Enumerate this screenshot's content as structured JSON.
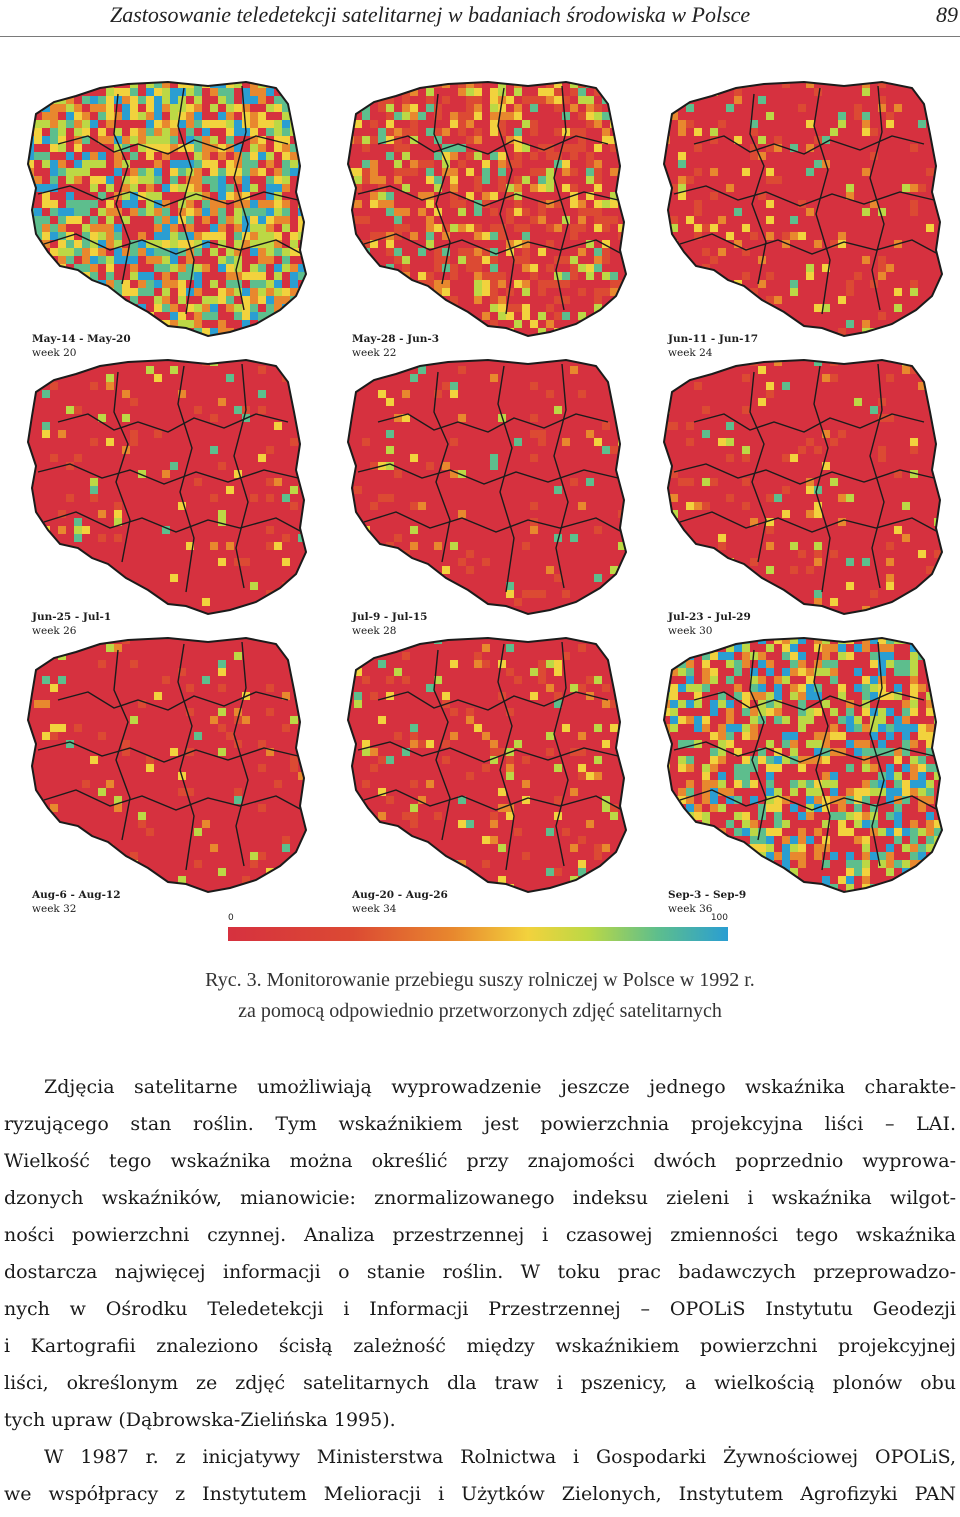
{
  "running_head": {
    "title": "Zastosowanie teledetekcji satelitarnej w badaniach środowiska w Polsce",
    "page_number": "89"
  },
  "maps": [
    {
      "dates": "May-14 - May-20",
      "week": "week 20",
      "wetness": 0.72
    },
    {
      "dates": "May-28 - Jun-3",
      "week": "week 22",
      "wetness": 0.5
    },
    {
      "dates": "Jun-11 - Jun-17",
      "week": "week 24",
      "wetness": 0.18
    },
    {
      "dates": "Jun-25 - Jul-1",
      "week": "week 26",
      "wetness": 0.1
    },
    {
      "dates": "Jul-9 - Jul-15",
      "week": "week 28",
      "wetness": 0.09
    },
    {
      "dates": "Jul-23 - Jul-29",
      "week": "week 30",
      "wetness": 0.12
    },
    {
      "dates": "Aug-6 - Aug-12",
      "week": "week 32",
      "wetness": 0.11
    },
    {
      "dates": "Aug-20 - Aug-26",
      "week": "week 34",
      "wetness": 0.16
    },
    {
      "dates": "Sep-3 - Sep-9",
      "week": "week 36",
      "wetness": 0.58
    }
  ],
  "colors": {
    "scale": [
      "#d6313f",
      "#dc4a33",
      "#e8882e",
      "#f2d23d",
      "#bcd845",
      "#5dbe8d",
      "#2a9ed2"
    ],
    "border": "#1b1b1b"
  },
  "scale": {
    "min": "0",
    "max": "100"
  },
  "caption": [
    "Ryc. 3. Monitorowanie przebiegu suszy rolniczej w Polsce w 1992 r.",
    "za pomocą odpowiednio przetworzonych zdjęć satelitarnych"
  ],
  "body_lines": [
    "Zdjęcia satelitarne umożliwiają wyprowadzenie jeszcze jednego wskaźnika charakte-",
    "ryzującego stan roślin. Tym wskaźnikiem jest powierzchnia projekcyjna liści – LAI.",
    "Wielkość tego wskaźnika można określić przy znajomości dwóch poprzednio wyprowa-",
    "dzonych wskaźników, mianowicie: znormalizowanego indeksu zieleni i wskaźnika wilgot-",
    "ności powierzchni czynnej. Analiza przestrzennej i czasowej zmienności tego wskaźnika",
    "dostarcza najwięcej informacji o stanie roślin. W toku prac badawczych przeprowadzo-",
    "nych w Ośrodku Teledetekcji i Informacji Przestrzennej – OPOLiS Instytutu Geodezji",
    "i Kartografii znaleziono ścisłą zależność między wskaźnikiem powierzchni projekcyjnej",
    "liści, określonym ze zdjęć satelitarnych dla traw i pszenicy, a wielkością plonów obu",
    "tych upraw (Dąbrowska-Zielińska 1995).",
    "W 1987 r. z inicjatywy Ministerstwa Rolnictwa i Gospodarki Żywnościowej OPOLiS,",
    "we współpracy z Instytutem Melioracji i Użytków Zielonych, Instytutem Agrofizyki PAN"
  ]
}
